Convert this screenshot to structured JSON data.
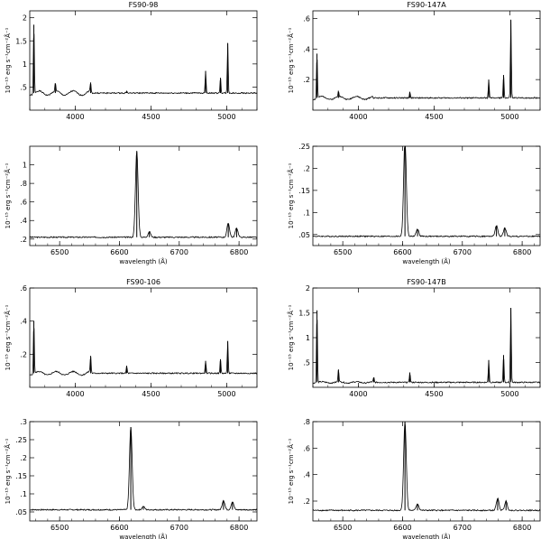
{
  "chart_data": [
    {
      "type": "line",
      "title": "FS90-98",
      "xlabel": "",
      "ylabel": "10⁻¹⁵ erg s⁻¹cm⁻²Å⁻¹",
      "xlim": [
        3700,
        5200
      ],
      "ylim": [
        0,
        2.15
      ],
      "xticks": [
        4000,
        4500,
        5000
      ],
      "yticks": [
        0.5,
        1,
        1.5,
        2
      ],
      "ytick_labels": [
        ".5",
        "1",
        "1.5",
        "2"
      ],
      "series": [
        {
          "continuum": 0.37,
          "x": [
            3727,
            3869,
            4102,
            4340,
            4861,
            4959,
            5007
          ],
          "values": [
            1.85,
            0.55,
            0.6,
            0.42,
            0.85,
            0.7,
            1.45
          ]
        }
      ]
    },
    {
      "type": "line",
      "title": "FS90-147A",
      "xlabel": "",
      "ylabel": "10⁻¹⁵ erg s⁻¹cm⁻²Å⁻¹",
      "xlim": [
        3700,
        5200
      ],
      "ylim": [
        0,
        0.65
      ],
      "xticks": [
        4000,
        4500,
        5000
      ],
      "yticks": [
        0.2,
        0.4,
        0.6
      ],
      "ytick_labels": [
        ".2",
        ".4",
        ".6"
      ],
      "series": [
        {
          "continuum": 0.08,
          "x": [
            3727,
            3869,
            4340,
            4861,
            4959,
            5007
          ],
          "values": [
            0.37,
            0.12,
            0.12,
            0.2,
            0.23,
            0.59
          ]
        }
      ]
    },
    {
      "type": "line",
      "title": "",
      "xlabel": "wavelength (Å)",
      "ylabel": "10⁻¹⁵ erg s⁻¹cm⁻²Å⁻¹",
      "xlim": [
        6450,
        6830
      ],
      "ylim": [
        0.13,
        1.2
      ],
      "xticks": [
        6500,
        6600,
        6700,
        6800
      ],
      "yticks": [
        0.2,
        0.4,
        0.6,
        0.8,
        1
      ],
      "ytick_labels": [
        ".2",
        ".4",
        ".6",
        ".8",
        "1"
      ],
      "series": [
        {
          "continuum": 0.22,
          "x": [
            6629,
            6650,
            6782,
            6796
          ],
          "values": [
            1.15,
            0.28,
            0.37,
            0.32
          ]
        }
      ]
    },
    {
      "type": "line",
      "title": "",
      "xlabel": "wavelength (Å)",
      "ylabel": "10⁻¹⁵ erg s⁻¹cm⁻²Å⁻¹",
      "xlim": [
        6450,
        6830
      ],
      "ylim": [
        0.025,
        0.25
      ],
      "xticks": [
        6500,
        6600,
        6700,
        6800
      ],
      "yticks": [
        0.05,
        0.1,
        0.15,
        0.2,
        0.25
      ],
      "ytick_labels": [
        ".05",
        ".1",
        ".15",
        ".2",
        ".25"
      ],
      "series": [
        {
          "continuum": 0.046,
          "x": [
            6604,
            6625,
            6757,
            6771
          ],
          "values": [
            0.27,
            0.062,
            0.07,
            0.065
          ]
        }
      ]
    },
    {
      "type": "line",
      "title": "FS90-106",
      "xlabel": "",
      "ylabel": "10⁻¹⁵ erg s⁻¹cm⁻²Å⁻¹",
      "xlim": [
        3700,
        5200
      ],
      "ylim": [
        0,
        0.6
      ],
      "xticks": [
        4000,
        4500,
        5000
      ],
      "yticks": [
        0.2,
        0.4,
        0.6
      ],
      "ytick_labels": [
        ".2",
        ".4",
        ".6"
      ],
      "series": [
        {
          "continuum": 0.085,
          "x": [
            3727,
            4102,
            4340,
            4861,
            4959,
            5007
          ],
          "values": [
            0.4,
            0.19,
            0.13,
            0.16,
            0.17,
            0.28
          ]
        }
      ]
    },
    {
      "type": "line",
      "title": "FS90-147B",
      "xlabel": "",
      "ylabel": "10⁻¹⁵ erg s⁻¹cm⁻²Å⁻¹",
      "xlim": [
        3700,
        5200
      ],
      "ylim": [
        0,
        2
      ],
      "xticks": [
        4000,
        4500,
        5000
      ],
      "yticks": [
        0.5,
        1,
        1.5,
        2
      ],
      "ytick_labels": [
        ".5",
        "1",
        "1.5",
        "2"
      ],
      "series": [
        {
          "continuum": 0.1,
          "x": [
            3727,
            3869,
            4102,
            4340,
            4861,
            4959,
            5007
          ],
          "values": [
            1.55,
            0.36,
            0.2,
            0.3,
            0.55,
            0.65,
            1.6
          ]
        }
      ]
    },
    {
      "type": "line",
      "title": "",
      "xlabel": "wavelength (Å)",
      "ylabel": "10⁻¹⁵ erg s⁻¹cm⁻²Å⁻¹",
      "xlim": [
        6450,
        6830
      ],
      "ylim": [
        0.025,
        0.3
      ],
      "xticks": [
        6500,
        6600,
        6700,
        6800
      ],
      "yticks": [
        0.05,
        0.1,
        0.15,
        0.2,
        0.25,
        0.3
      ],
      "ytick_labels": [
        ".05",
        ".1",
        ".15",
        ".2",
        ".25",
        ".3"
      ],
      "series": [
        {
          "continuum": 0.056,
          "x": [
            6619,
            6640,
            6774,
            6789
          ],
          "values": [
            0.285,
            0.065,
            0.082,
            0.078
          ]
        }
      ]
    },
    {
      "type": "line",
      "title": "",
      "xlabel": "wavelength (Å)",
      "ylabel": "10⁻¹⁵ erg s⁻¹cm⁻²Å⁻¹",
      "xlim": [
        6450,
        6830
      ],
      "ylim": [
        0.05,
        0.8
      ],
      "xticks": [
        6500,
        6600,
        6700,
        6800
      ],
      "yticks": [
        0.2,
        0.4,
        0.6,
        0.8
      ],
      "ytick_labels": [
        ".2",
        ".4",
        ".6",
        ".8"
      ],
      "series": [
        {
          "continuum": 0.13,
          "x": [
            6604,
            6625,
            6759,
            6773
          ],
          "values": [
            0.8,
            0.18,
            0.22,
            0.2
          ]
        }
      ]
    }
  ]
}
